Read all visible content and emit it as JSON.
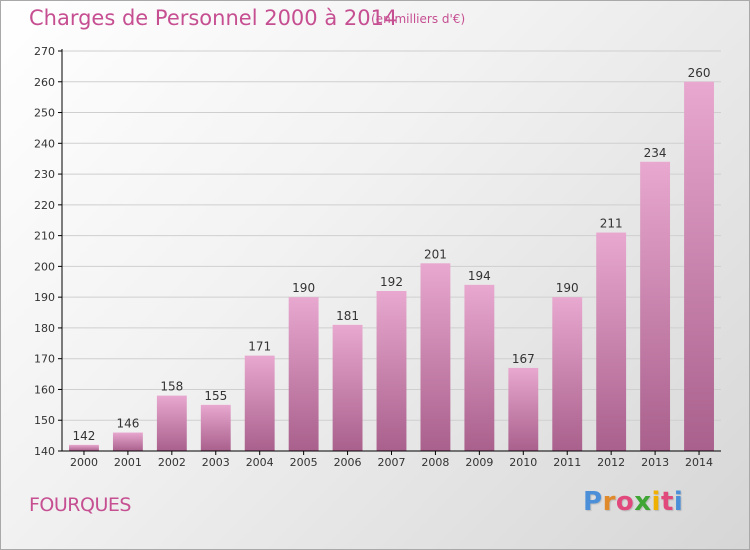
{
  "header": {
    "title": "Charges de Personnel 2000 à 2014",
    "subtitle": "(en milliers d'€)"
  },
  "footer": {
    "place": "FOURQUES",
    "brand": {
      "text": "Proxiti",
      "colors": [
        "#4a8fd8",
        "#e08a2c",
        "#e1487c",
        "#3fa535",
        "#f0b000",
        "#e1487c",
        "#4a8fd8"
      ]
    }
  },
  "colors": {
    "accent": "#c64f92",
    "bar_top": "#e8a8cf",
    "bar_bottom": "#a9608c",
    "axis": "#000000",
    "grid": "#cfcfcf"
  },
  "chart_data": {
    "type": "bar",
    "title": "Charges de Personnel 2000 à 2014",
    "subtitle": "(en milliers d'€)",
    "categories": [
      "2000",
      "2001",
      "2002",
      "2003",
      "2004",
      "2005",
      "2006",
      "2007",
      "2008",
      "2009",
      "2010",
      "2011",
      "2012",
      "2013",
      "2014"
    ],
    "values": [
      142,
      146,
      158,
      155,
      171,
      190,
      181,
      192,
      201,
      194,
      167,
      190,
      211,
      234,
      260
    ],
    "yticks": [
      140,
      150,
      160,
      170,
      180,
      190,
      200,
      210,
      220,
      230,
      240,
      250,
      260,
      270
    ],
    "ylim": [
      140,
      270
    ],
    "grid": true,
    "legend": "none"
  }
}
